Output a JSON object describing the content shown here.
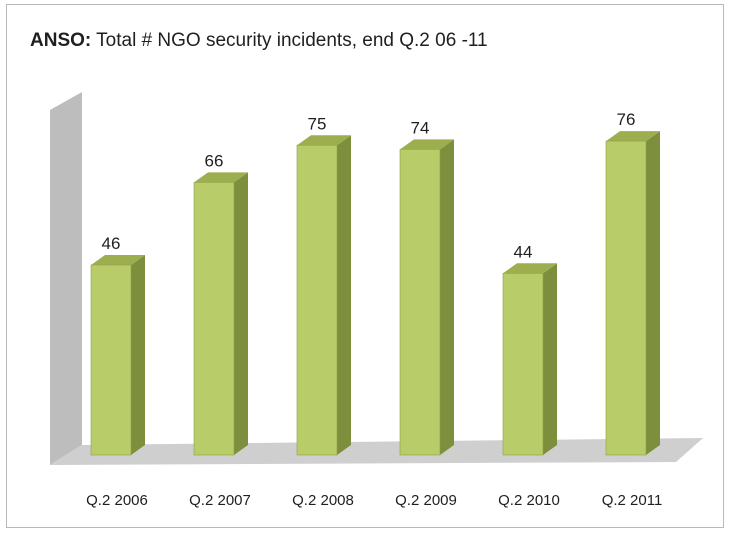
{
  "chart_data": {
    "type": "bar",
    "title_lead": "ANSO:",
    "title_rest": " Total # NGO security incidents, end Q.2 06 -11",
    "categories": [
      "Q.2 2006",
      "Q.2 2007",
      "Q.2 2008",
      "Q.2 2009",
      "Q.2 2010",
      "Q.2 2011"
    ],
    "values": [
      46,
      66,
      75,
      74,
      44,
      76
    ],
    "xlabel": "",
    "ylabel": "",
    "ylim": [
      0,
      80
    ],
    "grid": false,
    "legend": "none",
    "colors": {
      "bar_front": "#b9cc6a",
      "bar_side": "#7d8f3c",
      "bar_top": "#9cae4e",
      "wall": "#bdbdbd",
      "floor": "#cfcfcf"
    }
  }
}
